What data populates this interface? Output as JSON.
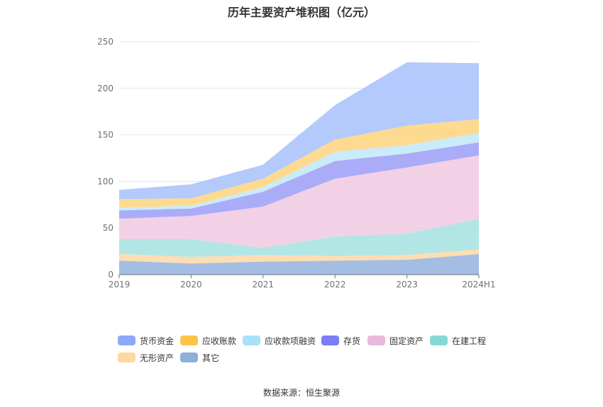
{
  "chart_data": {
    "type": "area",
    "title": "历年主要资产堆积图（亿元）",
    "stacked": true,
    "categories": [
      "2019",
      "2020",
      "2021",
      "2022",
      "2023",
      "2024H1"
    ],
    "ylim": [
      0,
      250
    ],
    "yticks": [
      0,
      50,
      100,
      150,
      200,
      250
    ],
    "grid": true,
    "legend_position": "bottom",
    "series": [
      {
        "name": "其它",
        "color": "#94b2de",
        "values": [
          15,
          12,
          14,
          15,
          16,
          22
        ]
      },
      {
        "name": "无形资产",
        "color": "#fdd8a5",
        "values": [
          7,
          7,
          7,
          5,
          5,
          5
        ]
      },
      {
        "name": "在建工程",
        "color": "#a4e2e0",
        "values": [
          16,
          19,
          8,
          21,
          23,
          33
        ]
      },
      {
        "name": "固定资产",
        "color": "#f0c9e2",
        "values": [
          22,
          25,
          44,
          62,
          71,
          68
        ]
      },
      {
        "name": "存货",
        "color": "#9b9ef7",
        "values": [
          9,
          8,
          16,
          19,
          15,
          14
        ]
      },
      {
        "name": "应收款项融资",
        "color": "#c1e8f8",
        "values": [
          3,
          3,
          5,
          10,
          9,
          10
        ]
      },
      {
        "name": "应收账款",
        "color": "#fdd47c",
        "values": [
          9,
          8,
          9,
          13,
          21,
          15
        ]
      },
      {
        "name": "货币资金",
        "color": "#a7bffc",
        "values": [
          10,
          15,
          15,
          37,
          68,
          60
        ]
      }
    ]
  },
  "legend": {
    "items": [
      {
        "label": "货币资金",
        "color": "#8ca8f8"
      },
      {
        "label": "应收账款",
        "color": "#fbc54a"
      },
      {
        "label": "应收款项融资",
        "color": "#a8e1f8"
      },
      {
        "label": "存货",
        "color": "#7b7ef4"
      },
      {
        "label": "固定资产",
        "color": "#eab8d8"
      },
      {
        "label": "在建工程",
        "color": "#86d8d6"
      },
      {
        "label": "无形资产",
        "color": "#fdd8a0"
      },
      {
        "label": "其它",
        "color": "#8eaedc"
      }
    ]
  },
  "source": "数据来源：恒生聚源"
}
